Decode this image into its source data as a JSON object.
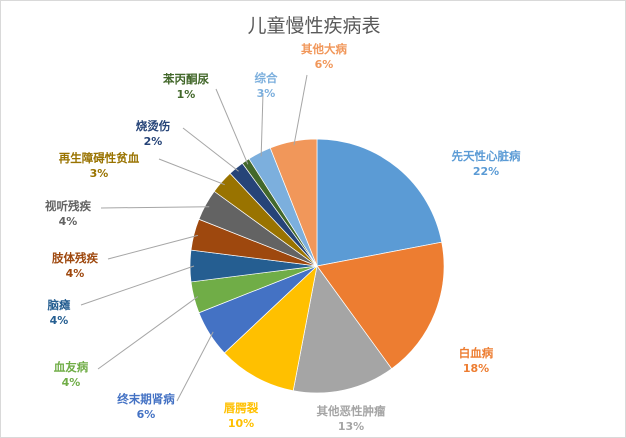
{
  "chart_data": {
    "type": "pie",
    "title": "儿童慢性疾病表",
    "start": "12 o'clock, clockwise",
    "categories": [
      "先天性心脏病",
      "白血病",
      "其他恶性肿瘤",
      "唇腭裂",
      "终末期肾病",
      "血友病",
      "脑瘫",
      "肢体残疾",
      "视听残疾",
      "再生障碍性贫血",
      "烧烫伤",
      "苯丙酮尿",
      "综合",
      "其他大病"
    ],
    "values": [
      22,
      18,
      13,
      10,
      6,
      4,
      4,
      4,
      4,
      3,
      2,
      1,
      3,
      6
    ],
    "labels": [
      "22%",
      "18%",
      "13%",
      "10%",
      "6%",
      "4%",
      "4%",
      "4%",
      "4%",
      "3%",
      "2%",
      "1%",
      "3%",
      "6%"
    ],
    "colors": [
      "#5b9bd5",
      "#ed7d31",
      "#a5a5a5",
      "#ffc000",
      "#4472c4",
      "#70ad47",
      "#255e91",
      "#9e480e",
      "#636363",
      "#997300",
      "#264478",
      "#43682b",
      "#7cafdd",
      "#f1975a"
    ],
    "legend": "none"
  }
}
